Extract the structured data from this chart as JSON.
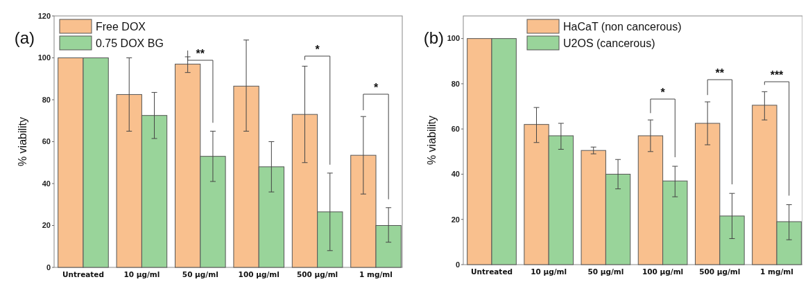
{
  "chart_data": [
    {
      "type": "bar",
      "categories": [
        "Untreated",
        "10 µg/ml",
        "50 µg/ml",
        "100 µg/ml",
        "500 µg/ml",
        "1 mg/ml"
      ],
      "ylabel": "% viability",
      "ylim": [
        0,
        120
      ],
      "yticks": [
        0,
        20,
        40,
        60,
        80,
        100,
        120
      ],
      "legend": "top left",
      "grid": false,
      "series": [
        {
          "name": "Free DOX",
          "color": "#f9c08e",
          "values": [
            100,
            82.5,
            97,
            86.5,
            73,
            53.5
          ],
          "errors": [
            null,
            [
              65,
              100
            ],
            [
              93,
              100.5
            ],
            [
              65,
              108.5
            ],
            [
              50,
              96
            ],
            [
              35,
              72
            ]
          ]
        },
        {
          "name": "0.75 DOX BG",
          "color": "#99d49a",
          "values": [
            100,
            72.5,
            53,
            48,
            26.5,
            20
          ],
          "errors": [
            null,
            [
              61.5,
              83.5
            ],
            [
              41,
              65
            ],
            [
              36,
              60
            ],
            [
              8,
              45
            ],
            [
              12,
              28.5
            ]
          ]
        }
      ],
      "annotations": [
        "(a)",
        "**",
        "*",
        "*"
      ]
    },
    {
      "type": "bar",
      "categories": [
        "Untreated",
        "10 µg/ml",
        "50 µg/ml",
        "100 µg/ml",
        "500 µg/ml",
        "1 mg/ml"
      ],
      "ylabel": "% viability",
      "ylim": [
        0,
        110
      ],
      "yticks": [
        0,
        20,
        40,
        60,
        80,
        100
      ],
      "legend": "top",
      "grid": false,
      "series": [
        {
          "name": "HaCaT (non cancerous)",
          "color": "#f9c08e",
          "values": [
            100,
            62,
            50.5,
            57,
            62.5,
            70.5
          ],
          "errors": [
            null,
            [
              54,
              69.5
            ],
            [
              49,
              52
            ],
            [
              50,
              64
            ],
            [
              53,
              72
            ],
            [
              64,
              76.5
            ]
          ]
        },
        {
          "name": "U2OS (cancerous)",
          "color": "#99d49a",
          "values": [
            100,
            57,
            40,
            37,
            21.5,
            19
          ],
          "errors": [
            null,
            [
              51,
              62.5
            ],
            [
              33.5,
              46.5
            ],
            [
              30,
              43.5
            ],
            [
              11.5,
              31.5
            ],
            [
              11,
              26.5
            ]
          ]
        }
      ],
      "annotations": [
        "(b)",
        "*",
        "**",
        "***"
      ]
    }
  ]
}
